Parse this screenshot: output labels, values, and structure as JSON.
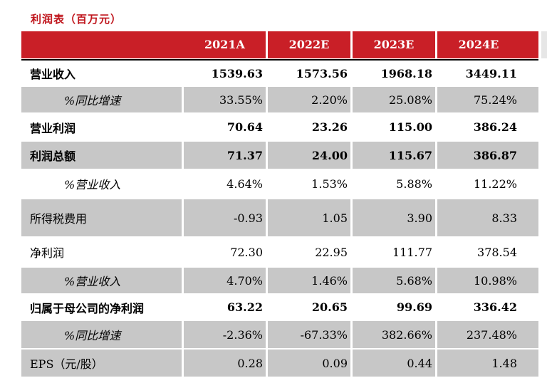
{
  "title": "利润表（百万元）",
  "columns": [
    "2021A",
    "2022E",
    "2023E",
    "2024E"
  ],
  "rows": [
    {
      "label": "营业收入",
      "values": [
        "1539.63",
        "1573.56",
        "1968.18",
        "3449.11"
      ],
      "bold": true,
      "shaded": false,
      "indent": false
    },
    {
      "label": "%同比增速",
      "values": [
        "33.55%",
        "2.20%",
        "25.08%",
        "75.24%"
      ],
      "bold": false,
      "shaded": true,
      "indent": true
    },
    {
      "label": "营业利润",
      "values": [
        "70.64",
        "23.26",
        "115.00",
        "386.24"
      ],
      "bold": true,
      "shaded": false,
      "indent": false
    },
    {
      "label": "利润总额",
      "values": [
        "71.37",
        "24.00",
        "115.67",
        "386.87"
      ],
      "bold": true,
      "shaded": true,
      "indent": false
    },
    {
      "label": "%营业收入",
      "values": [
        "4.64%",
        "1.53%",
        "5.88%",
        "11.22%"
      ],
      "bold": false,
      "shaded": false,
      "indent": true
    },
    {
      "label": "所得税费用",
      "values": [
        "-0.93",
        "1.05",
        "3.90",
        "8.33"
      ],
      "bold": false,
      "shaded": true,
      "indent": false
    },
    {
      "label": "净利润",
      "values": [
        "72.30",
        "22.95",
        "111.77",
        "378.54"
      ],
      "bold": false,
      "shaded": false,
      "indent": false
    },
    {
      "label": "%营业收入",
      "values": [
        "4.70%",
        "1.46%",
        "5.68%",
        "10.98%"
      ],
      "bold": false,
      "shaded": true,
      "indent": true
    },
    {
      "label": "归属于母公司的净利润",
      "values": [
        "63.22",
        "20.65",
        "99.69",
        "336.42"
      ],
      "bold": true,
      "shaded": false,
      "indent": false
    },
    {
      "label": "%同比增速",
      "values": [
        "-2.36%",
        "-67.33%",
        "382.66%",
        "237.48%"
      ],
      "bold": false,
      "shaded": true,
      "indent": true
    },
    {
      "label": "EPS（元/股）",
      "values": [
        "0.28",
        "0.09",
        "0.44",
        "1.48"
      ],
      "bold": false,
      "shaded": true,
      "indent": false
    }
  ]
}
